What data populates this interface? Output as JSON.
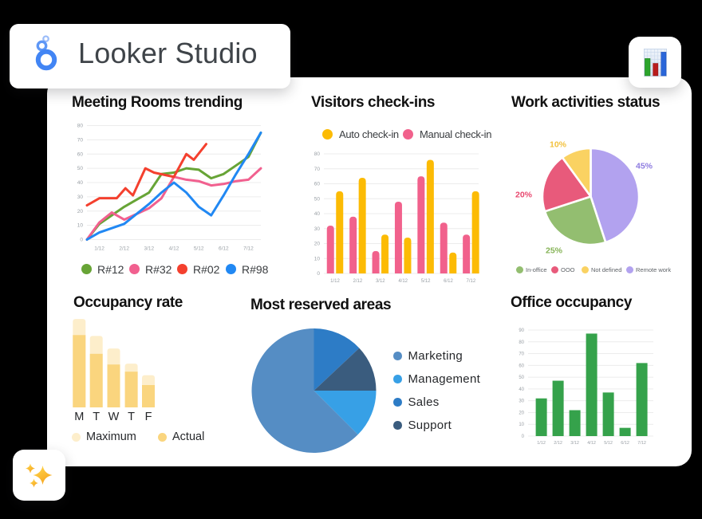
{
  "background": "#000000",
  "logo_card": {
    "title": "Looker Studio",
    "icon": "looker-logo-icon",
    "logo_blue": "#4285f4"
  },
  "icon_card": {
    "icon": "bar-chart-icon"
  },
  "sparkle_card": {
    "icon": "sparkles-icon"
  },
  "chart_data": [
    {
      "id": "meeting-rooms-trending",
      "type": "line",
      "title": "Meeting Rooms trending",
      "ylim": [
        0,
        80
      ],
      "yticks": [
        0,
        10,
        20,
        30,
        40,
        50,
        60,
        70,
        80
      ],
      "x_tick_labels": [
        "1/12",
        "2/12",
        "3/12",
        "4/12",
        "5/12",
        "6/12",
        "7/12"
      ],
      "grid": true,
      "legend_position": "bottom",
      "series": [
        {
          "name": "R#12",
          "color": "#67a436",
          "x": [
            0,
            1,
            2,
            3,
            4,
            5,
            6,
            7,
            8,
            9,
            10,
            11,
            12,
            13,
            14
          ],
          "values": [
            0,
            11,
            17,
            23,
            28,
            33,
            46,
            47,
            50,
            49,
            43,
            46,
            52,
            58,
            75
          ]
        },
        {
          "name": "R#32",
          "color": "#f1608f",
          "x": [
            0,
            1,
            2,
            3,
            4,
            5,
            6,
            7,
            8,
            9,
            10,
            11,
            12,
            13,
            14
          ],
          "values": [
            0,
            12,
            19,
            14,
            18,
            22,
            29,
            44,
            42,
            41,
            38,
            39,
            41,
            42,
            50
          ]
        },
        {
          "name": "R#02",
          "color": "#f4402e",
          "x": [
            0,
            1,
            2.4,
            3.1,
            3.7,
            4.7,
            5.4,
            7,
            8,
            8.6,
            9.6
          ],
          "values": [
            24,
            29,
            29,
            36,
            31,
            50,
            47,
            44,
            60,
            56,
            67
          ]
        },
        {
          "name": "R#98",
          "color": "#2188f3",
          "x": [
            0,
            1,
            2,
            3,
            4,
            5,
            6,
            7,
            8,
            9,
            10,
            11,
            12,
            13,
            14
          ],
          "values": [
            0,
            5,
            8,
            11,
            18,
            25,
            33,
            40,
            33,
            23,
            17,
            31,
            46,
            60,
            75
          ]
        }
      ]
    },
    {
      "id": "visitors-check-ins",
      "type": "grouped-bar",
      "title": "Visitors check-ins",
      "ylim": [
        0,
        80
      ],
      "yticks": [
        0,
        10,
        20,
        30,
        40,
        50,
        60,
        70,
        80
      ],
      "categories": [
        "1/12",
        "2/12",
        "3/12",
        "4/12",
        "5/12",
        "6/12",
        "7/12"
      ],
      "grid": true,
      "legend_position": "top",
      "legend": [
        {
          "label": "Auto check-in",
          "color": "#fcbb04"
        },
        {
          "label": "Manual check-in",
          "color": "#f1618c"
        }
      ],
      "series": [
        {
          "name": "Manual check-in",
          "color": "#f1618c",
          "values": [
            32,
            38,
            15,
            48,
            65,
            34,
            26
          ]
        },
        {
          "name": "Auto check-in",
          "color": "#fcbb04",
          "values": [
            55,
            64,
            26,
            24,
            76,
            14,
            55
          ]
        }
      ]
    },
    {
      "id": "work-activities-status",
      "type": "pie",
      "title": "Work activities status",
      "legend_position": "bottom",
      "slice_gap": true,
      "slices": [
        {
          "label": "Remote work",
          "pct": 45,
          "color": "#b2a2ef",
          "label_text": "45%",
          "label_color": "#8e7ce0"
        },
        {
          "label": "In-office",
          "pct": 25,
          "color": "#93be70",
          "label_text": "25%",
          "label_color": "#85b356"
        },
        {
          "label": "OOO",
          "pct": 20,
          "color": "#e85a7b",
          "label_text": "20%",
          "label_color": "#e8486f"
        },
        {
          "label": "Not defined",
          "pct": 10,
          "color": "#fad262",
          "label_text": "10%",
          "label_color": "#f2c13d"
        }
      ],
      "legend": [
        {
          "label": "In-office",
          "color": "#93be70"
        },
        {
          "label": "OOO",
          "color": "#e85a7b"
        },
        {
          "label": "Not defined",
          "color": "#fad262"
        },
        {
          "label": "Remote work",
          "color": "#b2a2ef"
        }
      ]
    },
    {
      "id": "occupancy-rate",
      "type": "stacked-bar",
      "title": "Occupancy rate",
      "categories": [
        "M",
        "T",
        "W",
        "T",
        "F"
      ],
      "ylim": [
        0,
        100
      ],
      "grid": false,
      "legend_position": "bottom",
      "series": [
        {
          "name": "Maximum",
          "color": "#fdeecb",
          "values": [
            99,
            80,
            66,
            49,
            36
          ]
        },
        {
          "name": "Actual",
          "color": "#fad57e",
          "values": [
            81,
            60,
            48,
            40,
            25
          ]
        }
      ]
    },
    {
      "id": "most-reserved-areas",
      "type": "pie",
      "title": "Most reserved areas",
      "legend_position": "right",
      "slice_gap": false,
      "slices": [
        {
          "label": "Sales",
          "pct": 13,
          "color": "#2d7cc6"
        },
        {
          "label": "Support",
          "pct": 12,
          "color": "#3a5c7e"
        },
        {
          "label": "Management",
          "pct": 12.5,
          "color": "#37a0e6"
        },
        {
          "label": "Marketing",
          "pct": 62.5,
          "color": "#558dc4"
        }
      ],
      "legend": [
        {
          "label": "Marketing",
          "color": "#558dc4"
        },
        {
          "label": "Management",
          "color": "#37a0e6"
        },
        {
          "label": "Sales",
          "color": "#2d7cc6"
        },
        {
          "label": "Support",
          "color": "#3a5c7e"
        }
      ]
    },
    {
      "id": "office-occupancy",
      "type": "bar",
      "title": "Office occupancy",
      "ylim": [
        0,
        90
      ],
      "yticks": [
        0,
        10,
        20,
        30,
        40,
        50,
        60,
        70,
        80,
        90
      ],
      "categories": [
        "1/12",
        "2/12",
        "3/12",
        "4/12",
        "5/12",
        "6/12",
        "7/12"
      ],
      "grid": true,
      "bar_color": "#35a24b",
      "values": [
        32,
        47,
        22,
        87,
        37,
        7,
        62
      ]
    }
  ]
}
